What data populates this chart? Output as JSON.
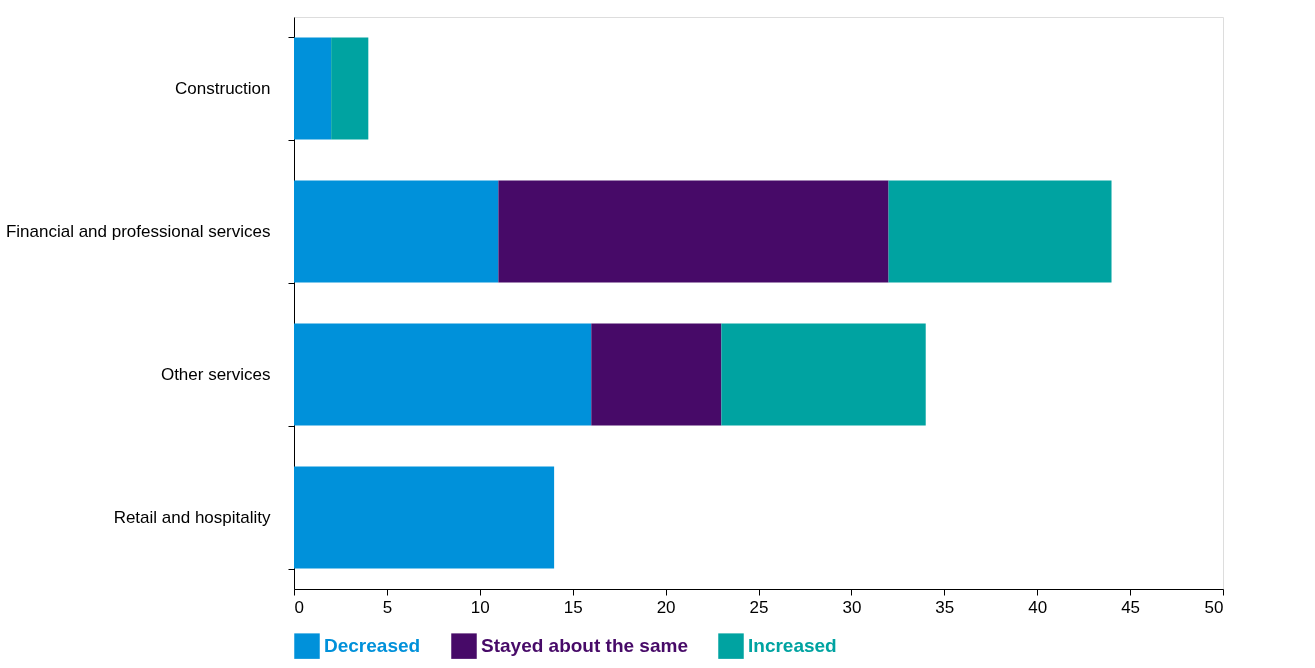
{
  "chart_data": {
    "type": "bar",
    "orientation": "horizontal",
    "stacked": true,
    "categories": [
      "Construction",
      "Financial and professional services",
      "Other services",
      "Retail and hospitality"
    ],
    "series": [
      {
        "name": "Decreased",
        "color": "#0091da",
        "values": [
          2,
          11,
          16,
          14
        ]
      },
      {
        "name": "Stayed about the same",
        "color": "#470a68",
        "values": [
          0,
          21,
          7,
          0
        ]
      },
      {
        "name": "Increased",
        "color": "#00a3a1",
        "values": [
          2,
          12,
          11,
          0
        ]
      }
    ],
    "xlim": [
      0,
      50
    ],
    "xticks": [
      0,
      5,
      10,
      15,
      20,
      25,
      30,
      35,
      40,
      45,
      50
    ],
    "grid": false,
    "legend": "bottom"
  }
}
